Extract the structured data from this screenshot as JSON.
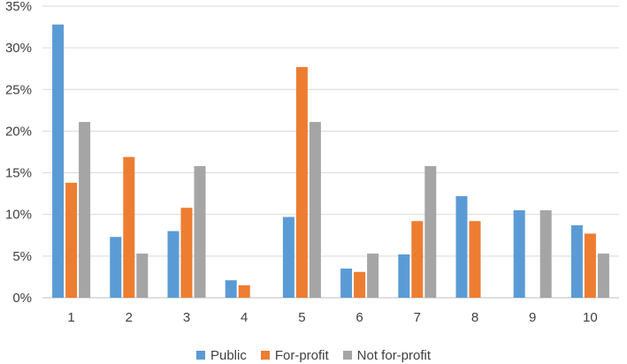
{
  "chart_data": {
    "type": "bar",
    "title": "",
    "xlabel": "",
    "ylabel": "",
    "categories": [
      "1",
      "2",
      "3",
      "4",
      "5",
      "6",
      "7",
      "8",
      "9",
      "10"
    ],
    "ylim": [
      0,
      35
    ],
    "yticks": [
      0,
      5,
      10,
      15,
      20,
      25,
      30,
      35
    ],
    "ytick_labels": [
      "0%",
      "5%",
      "10%",
      "15%",
      "20%",
      "25%",
      "30%",
      "35%"
    ],
    "grid": true,
    "legend_position": "bottom",
    "series": [
      {
        "name": "Public",
        "color": "#5B9BD5",
        "values": [
          32.8,
          7.3,
          8.0,
          2.1,
          9.7,
          3.5,
          5.2,
          12.2,
          10.5,
          8.7
        ]
      },
      {
        "name": "For-profit",
        "color": "#ED7D31",
        "values": [
          13.8,
          16.9,
          10.8,
          1.5,
          27.7,
          3.1,
          9.2,
          9.2,
          0,
          7.7
        ]
      },
      {
        "name": "Not for-profit",
        "color": "#A5A5A5",
        "values": [
          21.1,
          5.3,
          15.8,
          0,
          21.1,
          5.3,
          15.8,
          0,
          10.5,
          5.3
        ]
      }
    ]
  }
}
